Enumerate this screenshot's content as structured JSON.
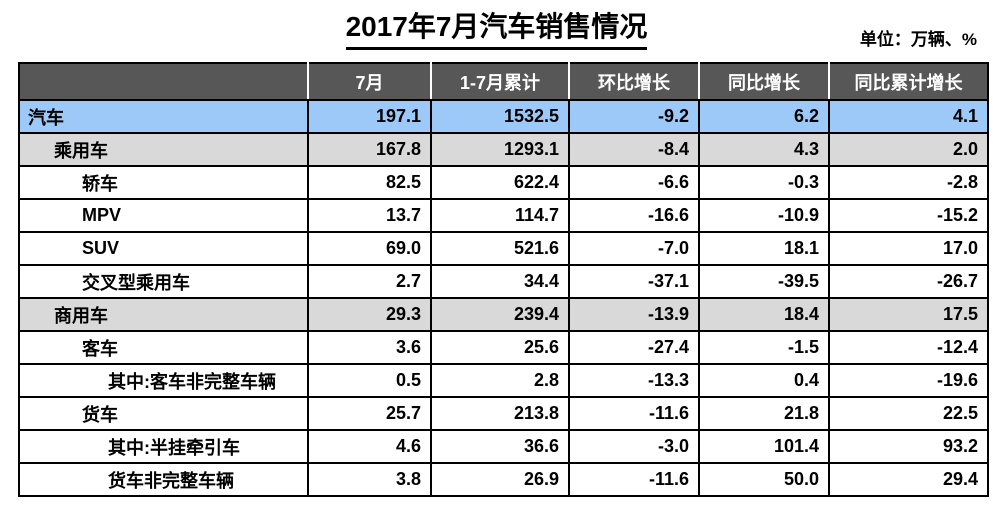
{
  "page": {
    "title": "2017年7月汽车销售情况",
    "unit_label": "单位：万辆、%"
  },
  "colors": {
    "header_bg": "#575757",
    "header_text": "#ffffff",
    "row_total_bg": "#9cc9f7",
    "row_subtotal_bg": "#d9d9d9",
    "row_bg": "#ffffff",
    "border": "#000000"
  },
  "table": {
    "columns": [
      "",
      "7月",
      "1-7月累计",
      "环比增长",
      "同比增长",
      "同比累计增长"
    ],
    "rows": [
      {
        "label": "汽车",
        "indent": 0,
        "style": "blue",
        "values": [
          "197.1",
          "1532.5",
          "-9.2",
          "6.2",
          "4.1"
        ]
      },
      {
        "label": "乘用车",
        "indent": 1,
        "style": "gray",
        "values": [
          "167.8",
          "1293.1",
          "-8.4",
          "4.3",
          "2.0"
        ]
      },
      {
        "label": "轿车",
        "indent": 2,
        "style": "white",
        "values": [
          "82.5",
          "622.4",
          "-6.6",
          "-0.3",
          "-2.8"
        ]
      },
      {
        "label": "MPV",
        "indent": 2,
        "style": "white",
        "values": [
          "13.7",
          "114.7",
          "-16.6",
          "-10.9",
          "-15.2"
        ]
      },
      {
        "label": "SUV",
        "indent": 2,
        "style": "white",
        "values": [
          "69.0",
          "521.6",
          "-7.0",
          "18.1",
          "17.0"
        ]
      },
      {
        "label": "交叉型乘用车",
        "indent": 2,
        "style": "white",
        "values": [
          "2.7",
          "34.4",
          "-37.1",
          "-39.5",
          "-26.7"
        ]
      },
      {
        "label": "商用车",
        "indent": 1,
        "style": "gray",
        "values": [
          "29.3",
          "239.4",
          "-13.9",
          "18.4",
          "17.5"
        ]
      },
      {
        "label": "客车",
        "indent": 2,
        "style": "white",
        "values": [
          "3.6",
          "25.6",
          "-27.4",
          "-1.5",
          "-12.4"
        ]
      },
      {
        "label": "其中:客车非完整车辆",
        "indent": 3,
        "style": "white",
        "values": [
          "0.5",
          "2.8",
          "-13.3",
          "0.4",
          "-19.6"
        ]
      },
      {
        "label": "货车",
        "indent": 2,
        "style": "white",
        "values": [
          "25.7",
          "213.8",
          "-11.6",
          "21.8",
          "22.5"
        ]
      },
      {
        "label": "其中:半挂牵引车",
        "indent": 3,
        "style": "white",
        "values": [
          "4.6",
          "36.6",
          "-3.0",
          "101.4",
          "93.2"
        ]
      },
      {
        "label": "货车非完整车辆",
        "indent": 3,
        "style": "white",
        "values": [
          "3.8",
          "26.9",
          "-11.6",
          "50.0",
          "29.4"
        ]
      }
    ]
  },
  "chart_data": {
    "type": "table",
    "title": "2017年7月汽车销售情况",
    "unit": "万辆、%",
    "columns": [
      "7月",
      "1-7月累计",
      "环比增长",
      "同比增长",
      "同比累计增长"
    ],
    "rows": [
      {
        "category": "汽车",
        "values": [
          197.1,
          1532.5,
          -9.2,
          6.2,
          4.1
        ]
      },
      {
        "category": "乘用车",
        "values": [
          167.8,
          1293.1,
          -8.4,
          4.3,
          2.0
        ]
      },
      {
        "category": "轿车",
        "values": [
          82.5,
          622.4,
          -6.6,
          -0.3,
          -2.8
        ]
      },
      {
        "category": "MPV",
        "values": [
          13.7,
          114.7,
          -16.6,
          -10.9,
          -15.2
        ]
      },
      {
        "category": "SUV",
        "values": [
          69.0,
          521.6,
          -7.0,
          18.1,
          17.0
        ]
      },
      {
        "category": "交叉型乘用车",
        "values": [
          2.7,
          34.4,
          -37.1,
          -39.5,
          -26.7
        ]
      },
      {
        "category": "商用车",
        "values": [
          29.3,
          239.4,
          -13.9,
          18.4,
          17.5
        ]
      },
      {
        "category": "客车",
        "values": [
          3.6,
          25.6,
          -27.4,
          -1.5,
          -12.4
        ]
      },
      {
        "category": "其中:客车非完整车辆",
        "values": [
          0.5,
          2.8,
          -13.3,
          0.4,
          -19.6
        ]
      },
      {
        "category": "货车",
        "values": [
          25.7,
          213.8,
          -11.6,
          21.8,
          22.5
        ]
      },
      {
        "category": "其中:半挂牵引车",
        "values": [
          4.6,
          36.6,
          -3.0,
          101.4,
          93.2
        ]
      },
      {
        "category": "货车非完整车辆",
        "values": [
          3.8,
          26.9,
          -11.6,
          50.0,
          29.4
        ]
      }
    ]
  }
}
